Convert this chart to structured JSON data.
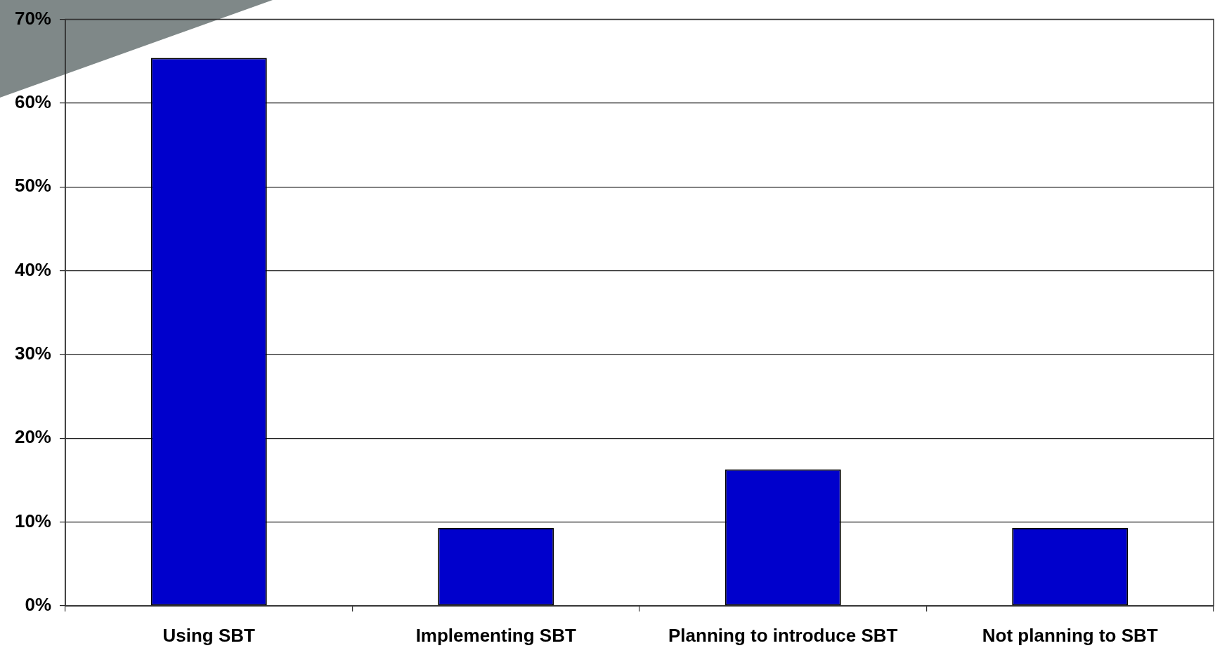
{
  "chart_data": {
    "type": "bar",
    "categories": [
      "Using SBT",
      "Implementing SBT",
      "Planning to introduce SBT",
      "Not planning to SBT"
    ],
    "values": [
      65.4,
      9.3,
      16.3,
      9.3
    ],
    "color": "#0000cc",
    "ylim": [
      0,
      70
    ],
    "yticks": [
      {
        "value": 0,
        "label": "0%"
      },
      {
        "value": 10,
        "label": "10%"
      },
      {
        "value": 20,
        "label": "20%"
      },
      {
        "value": 30,
        "label": "30%"
      },
      {
        "value": 40,
        "label": "40%"
      },
      {
        "value": 50,
        "label": "50%"
      },
      {
        "value": 60,
        "label": "60%"
      },
      {
        "value": 70,
        "label": "70%"
      }
    ],
    "grid": "y"
  }
}
